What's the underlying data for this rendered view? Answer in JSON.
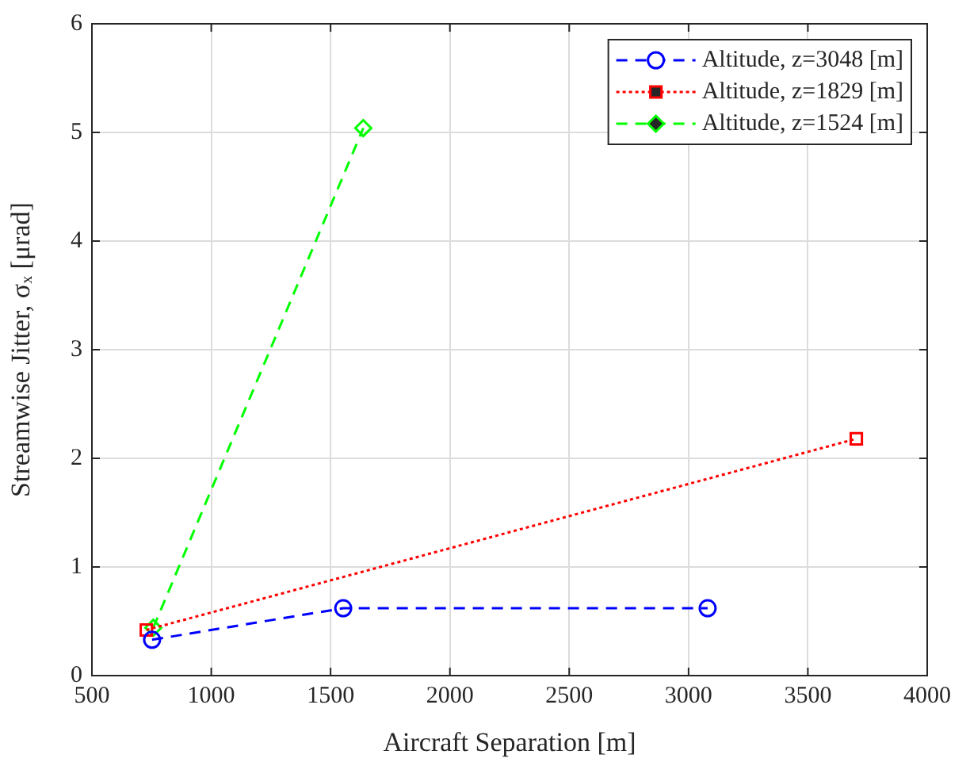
{
  "chart_data": {
    "type": "line",
    "xlabel": "Aircraft Separation [m]",
    "ylabel": "Streamwise Jitter, σₓ [μrad]",
    "xlim": [
      500,
      4000
    ],
    "xticks": [
      500,
      1000,
      1500,
      2000,
      2500,
      3000,
      3500,
      4000
    ],
    "ylim": [
      0,
      6
    ],
    "yticks": [
      0,
      1,
      2,
      3,
      4,
      5,
      6
    ],
    "grid": true,
    "legend": "top right",
    "series": [
      {
        "name": "Altitude, z=3048 [m]",
        "color": "#0000ff",
        "marker": "circle",
        "line_style": "dashed",
        "x": [
          752,
          1553,
          3080
        ],
        "values": [
          0.33,
          0.62,
          0.62
        ]
      },
      {
        "name": "Altitude, z=1829 [m]",
        "color": "#ff0000",
        "marker": "square",
        "line_style": "dotted",
        "x": [
          728,
          3703
        ],
        "values": [
          0.42,
          2.18
        ]
      },
      {
        "name": "Altitude, z=1524 [m]",
        "color": "#00ff00",
        "marker": "diamond",
        "line_style": "dashed",
        "x": [
          757,
          1637
        ],
        "values": [
          0.44,
          5.04
        ]
      }
    ]
  }
}
